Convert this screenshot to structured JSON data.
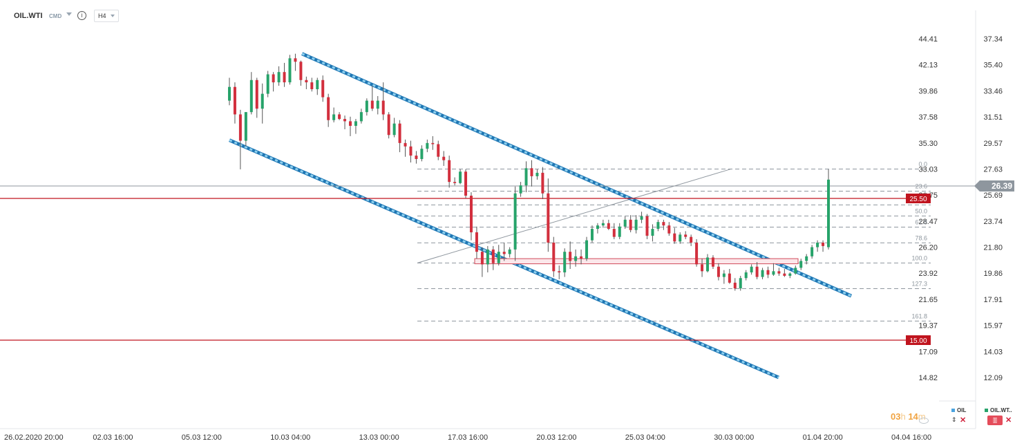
{
  "header": {
    "symbol": "OIL.WTI",
    "instrument_type": "CMD",
    "info_icon": "info-icon",
    "timeframe": "H4"
  },
  "chart_data": {
    "type": "candlestick",
    "left_axis_ticks": [
      "44.41",
      "42.13",
      "39.86",
      "37.58",
      "35.30",
      "33.03",
      "30.75",
      "28.47",
      "26.20",
      "23.92",
      "21.65",
      "19.37",
      "17.09",
      "14.82"
    ],
    "right_axis_ticks": [
      "37.34",
      "35.40",
      "33.46",
      "31.51",
      "29.57",
      "27.63",
      "25.69",
      "23.74",
      "21.80",
      "19.86",
      "17.91",
      "15.97",
      "14.03",
      "12.09"
    ],
    "x_tick_labels": [
      "26.02.2020  20:00",
      "02.03  16:00",
      "05.03  12:00",
      "10.03  04:00",
      "13.03  00:00",
      "17.03  16:00",
      "20.03  12:00",
      "25.03  04:00",
      "30.03  00:00",
      "01.04  20:00",
      "04.04  16:00"
    ],
    "current_price": "26.39",
    "horizontal_levels": [
      {
        "label": "25.50",
        "color": "#c0141e"
      },
      {
        "label": "15.00",
        "color": "#c0141e"
      }
    ],
    "fibonacci_levels": [
      "0.0",
      "23.6",
      "38.2",
      "50.0",
      "61.8",
      "78.6",
      "100.0",
      "127.3",
      "161.8"
    ],
    "candles": [
      [
        39.0,
        41.0,
        38.6,
        40.2
      ],
      [
        40.2,
        40.6,
        37.0,
        37.8
      ],
      [
        37.8,
        38.2,
        33.0,
        35.5
      ],
      [
        35.5,
        38.0,
        35.0,
        38.0
      ],
      [
        38.0,
        41.5,
        37.8,
        40.8
      ],
      [
        40.8,
        41.0,
        37.5,
        38.3
      ],
      [
        38.3,
        40.5,
        37.0,
        39.6
      ],
      [
        39.6,
        41.6,
        39.3,
        41.3
      ],
      [
        41.3,
        41.5,
        39.8,
        40.6
      ],
      [
        40.6,
        42.0,
        40.3,
        41.5
      ],
      [
        41.5,
        42.3,
        40.2,
        40.6
      ],
      [
        40.6,
        43.0,
        40.4,
        42.7
      ],
      [
        42.7,
        43.1,
        41.6,
        42.4
      ],
      [
        42.4,
        42.5,
        40.3,
        40.8
      ],
      [
        40.8,
        41.1,
        40.0,
        40.6
      ],
      [
        40.6,
        41.0,
        39.8,
        40.0
      ],
      [
        40.0,
        41.0,
        39.5,
        40.8
      ],
      [
        40.8,
        41.2,
        38.9,
        39.3
      ],
      [
        39.3,
        39.6,
        36.7,
        37.3
      ],
      [
        37.3,
        38.4,
        37.1,
        37.8
      ],
      [
        37.8,
        38.0,
        37.3,
        37.4
      ],
      [
        37.4,
        37.7,
        36.5,
        37.2
      ],
      [
        37.2,
        37.6,
        35.9,
        36.8
      ],
      [
        36.8,
        37.4,
        36.1,
        37.2
      ],
      [
        37.2,
        38.3,
        37.0,
        38.0
      ],
      [
        38.0,
        39.2,
        37.7,
        39.0
      ],
      [
        39.0,
        40.3,
        38.1,
        38.3
      ],
      [
        38.3,
        39.4,
        37.8,
        39.0
      ],
      [
        39.0,
        40.6,
        37.3,
        37.8
      ],
      [
        37.8,
        38.0,
        35.7,
        36.0
      ],
      [
        36.0,
        37.5,
        35.8,
        37.0
      ],
      [
        37.0,
        37.3,
        34.5,
        35.3
      ],
      [
        35.3,
        35.6,
        34.1,
        35.0
      ],
      [
        35.0,
        35.5,
        33.6,
        34.2
      ],
      [
        34.2,
        34.6,
        33.5,
        33.9
      ],
      [
        33.9,
        35.1,
        33.7,
        34.8
      ],
      [
        34.8,
        35.6,
        34.5,
        35.3
      ],
      [
        35.3,
        35.9,
        34.7,
        35.2
      ],
      [
        35.2,
        35.5,
        33.8,
        34.1
      ],
      [
        34.1,
        34.6,
        33.3,
        33.8
      ],
      [
        33.8,
        34.2,
        31.4,
        31.9
      ],
      [
        31.9,
        32.3,
        31.6,
        31.8
      ],
      [
        31.8,
        33.0,
        31.7,
        32.8
      ],
      [
        32.8,
        33.0,
        30.5,
        30.7
      ],
      [
        30.7,
        31.0,
        26.8,
        27.5
      ],
      [
        27.5,
        28.0,
        25.2,
        25.8
      ],
      [
        25.8,
        26.2,
        23.6,
        24.7
      ],
      [
        24.7,
        26.3,
        24.0,
        26.0
      ],
      [
        26.0,
        26.3,
        24.2,
        24.8
      ],
      [
        24.8,
        26.4,
        24.6,
        25.8
      ],
      [
        25.8,
        26.6,
        25.0,
        25.6
      ],
      [
        25.6,
        26.2,
        25.3,
        26.0
      ],
      [
        26.0,
        31.5,
        25.0,
        30.9
      ],
      [
        30.9,
        31.9,
        30.6,
        31.6
      ],
      [
        31.6,
        33.7,
        31.0,
        33.1
      ],
      [
        33.1,
        33.8,
        31.5,
        32.4
      ],
      [
        32.4,
        33.0,
        32.1,
        32.7
      ],
      [
        32.7,
        33.2,
        30.4,
        30.9
      ],
      [
        30.9,
        32.2,
        25.8,
        26.6
      ],
      [
        26.6,
        27.1,
        23.6,
        24.1
      ],
      [
        24.1,
        24.6,
        23.4,
        24.0
      ],
      [
        24.0,
        26.1,
        23.6,
        25.8
      ],
      [
        25.8,
        26.7,
        24.3,
        25.0
      ],
      [
        25.0,
        26.0,
        24.5,
        25.4
      ],
      [
        25.4,
        26.0,
        24.7,
        25.2
      ],
      [
        25.2,
        27.1,
        25.0,
        26.8
      ],
      [
        26.8,
        28.1,
        26.6,
        27.8
      ],
      [
        27.8,
        28.3,
        27.4,
        28.1
      ],
      [
        28.1,
        28.6,
        27.9,
        28.3
      ],
      [
        28.3,
        28.6,
        27.7,
        27.8
      ],
      [
        27.8,
        28.3,
        26.9,
        27.1
      ],
      [
        27.1,
        28.3,
        26.9,
        28.0
      ],
      [
        28.0,
        28.9,
        27.8,
        28.6
      ],
      [
        28.6,
        29.0,
        27.5,
        27.7
      ],
      [
        27.7,
        29.0,
        27.4,
        28.6
      ],
      [
        28.6,
        29.3,
        28.3,
        28.9
      ],
      [
        28.9,
        29.1,
        26.9,
        27.2
      ],
      [
        27.2,
        28.2,
        26.7,
        27.8
      ],
      [
        27.8,
        28.6,
        27.6,
        28.4
      ],
      [
        28.4,
        28.6,
        27.7,
        28.1
      ],
      [
        28.1,
        28.4,
        27.2,
        27.4
      ],
      [
        27.4,
        27.9,
        26.5,
        26.7
      ],
      [
        26.7,
        27.5,
        26.5,
        27.3
      ],
      [
        27.3,
        27.6,
        26.9,
        27.1
      ],
      [
        27.1,
        27.3,
        26.3,
        26.6
      ],
      [
        26.6,
        26.9,
        24.5,
        24.7
      ],
      [
        24.7,
        25.2,
        23.6,
        24.1
      ],
      [
        24.1,
        25.6,
        24.0,
        25.3
      ],
      [
        25.3,
        25.5,
        24.3,
        24.5
      ],
      [
        24.5,
        24.8,
        23.3,
        23.6
      ],
      [
        23.6,
        24.2,
        23.0,
        23.9
      ],
      [
        23.9,
        24.3,
        23.0,
        23.1
      ],
      [
        23.1,
        23.5,
        22.4,
        22.6
      ],
      [
        22.6,
        23.7,
        22.4,
        23.5
      ],
      [
        23.5,
        24.2,
        23.3,
        24.0
      ],
      [
        24.0,
        24.7,
        23.8,
        24.5
      ],
      [
        24.5,
        24.9,
        23.4,
        23.6
      ],
      [
        23.6,
        24.4,
        23.4,
        24.2
      ],
      [
        24.2,
        24.5,
        23.5,
        23.8
      ],
      [
        23.8,
        24.8,
        23.7,
        24.1
      ],
      [
        24.1,
        24.4,
        23.7,
        23.9
      ],
      [
        23.9,
        24.3,
        23.6,
        23.7
      ],
      [
        23.7,
        24.0,
        23.5,
        23.9
      ],
      [
        23.9,
        24.6,
        23.8,
        24.4
      ],
      [
        24.4,
        25.2,
        24.2,
        25.0
      ],
      [
        25.0,
        25.6,
        24.7,
        25.4
      ],
      [
        25.4,
        26.4,
        25.2,
        26.2
      ],
      [
        26.2,
        26.8,
        25.8,
        26.6
      ],
      [
        26.6,
        26.8,
        25.8,
        26.3
      ],
      [
        26.2,
        33.0,
        26.0,
        32.1
      ]
    ]
  }
}
